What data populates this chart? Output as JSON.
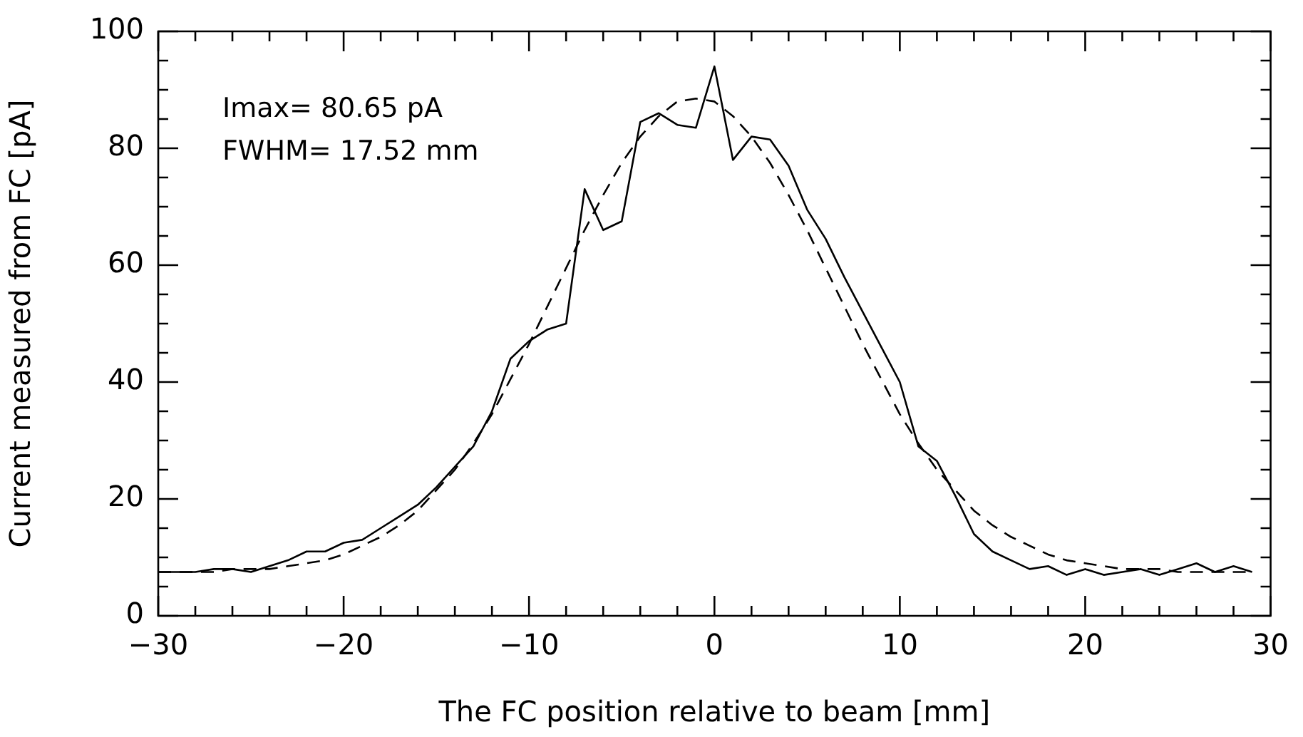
{
  "chart_data": {
    "type": "line",
    "xlabel": "The FC position relative to beam [mm]",
    "ylabel": "Current measured from FC [pA]",
    "annotations": [
      "Imax= 80.65 pA",
      "FWHM= 17.52 mm"
    ],
    "x": [
      -30,
      -29,
      -28,
      -27,
      -26,
      -25,
      -24,
      -23,
      -22,
      -21,
      -20,
      -19,
      -18,
      -17,
      -16,
      -15,
      -14,
      -13,
      -12,
      -11,
      -10,
      -9,
      -8,
      -7,
      -6,
      -5,
      -4,
      -3,
      -2,
      -1,
      0,
      1,
      2,
      3,
      4,
      5,
      6,
      7,
      8,
      9,
      10,
      11,
      12,
      13,
      14,
      15,
      16,
      17,
      18,
      19,
      20,
      21,
      22,
      23,
      24,
      25,
      26,
      27,
      28,
      29
    ],
    "series": [
      {
        "color": "#000000",
        "line_style": "solid",
        "values": [
          7.5,
          7.5,
          7.5,
          8,
          8,
          7.5,
          8.5,
          9.5,
          11,
          11,
          12.5,
          13,
          15,
          17,
          19,
          22,
          25.5,
          29,
          35,
          44,
          47,
          49,
          50,
          73,
          66,
          67.5,
          84.5,
          86,
          84,
          83.5,
          94,
          78,
          82,
          81.5,
          77,
          69.5,
          64.5,
          58,
          52,
          46,
          40,
          29,
          26.5,
          20.5,
          14,
          11,
          9.5,
          8,
          8.5,
          7,
          8,
          7,
          7.5,
          8,
          7,
          8,
          9,
          7.5,
          8.5,
          7.5
        ]
      },
      {
        "color": "#000000",
        "line_style": "dashed",
        "values": [
          7.5,
          7.5,
          7.5,
          7.5,
          8,
          8,
          8,
          8.5,
          9,
          9.5,
          10.5,
          12,
          13.5,
          15.5,
          18,
          21.5,
          25,
          29.5,
          34.5,
          40.5,
          46.5,
          53,
          59.5,
          66,
          72,
          77.5,
          82,
          85.5,
          88,
          88.5,
          88,
          85.5,
          82,
          77.5,
          72,
          66,
          59.5,
          53,
          46.5,
          40.5,
          34.5,
          29.5,
          25,
          21.5,
          18,
          15.5,
          13.5,
          12,
          10.5,
          9.5,
          9,
          8.5,
          8,
          8,
          8,
          7.5,
          7.5,
          7.5,
          7.5,
          7.5
        ]
      }
    ],
    "xlim": [
      -30,
      30
    ],
    "xticks": [
      -30,
      {
        "value": -28,
        "label": null
      },
      {
        "value": -26,
        "label": null
      },
      {
        "value": -24,
        "label": null
      },
      {
        "value": -22,
        "label": null
      },
      -20,
      {
        "value": -18,
        "label": null
      },
      {
        "value": -16,
        "label": null
      },
      {
        "value": -14,
        "label": null
      },
      {
        "value": -12,
        "label": null
      },
      -10,
      {
        "value": -8,
        "label": null
      },
      {
        "value": -6,
        "label": null
      },
      {
        "value": -4,
        "label": null
      },
      {
        "value": -2,
        "label": null
      },
      0,
      {
        "value": 2,
        "label": null
      },
      {
        "value": 4,
        "label": null
      },
      {
        "value": 6,
        "label": null
      },
      {
        "value": 8,
        "label": null
      },
      10,
      {
        "value": 12,
        "label": null
      },
      {
        "value": 14,
        "label": null
      },
      {
        "value": 16,
        "label": null
      },
      {
        "value": 18,
        "label": null
      },
      20,
      {
        "value": 22,
        "label": null
      },
      {
        "value": 24,
        "label": null
      },
      {
        "value": 26,
        "label": null
      },
      {
        "value": 28,
        "label": null
      },
      30
    ],
    "ylim": [
      0,
      100
    ],
    "yticks": [
      0,
      {
        "value": 5,
        "label": null
      },
      {
        "value": 10,
        "label": null
      },
      {
        "value": 15,
        "label": null
      },
      20,
      {
        "value": 25,
        "label": null
      },
      {
        "value": 30,
        "label": null
      },
      {
        "value": 35,
        "label": null
      },
      40,
      {
        "value": 45,
        "label": null
      },
      {
        "value": 50,
        "label": null
      },
      {
        "value": 55,
        "label": null
      },
      60,
      {
        "value": 65,
        "label": null
      },
      {
        "value": 70,
        "label": null
      },
      {
        "value": 75,
        "label": null
      },
      80,
      {
        "value": 85,
        "label": null
      },
      {
        "value": 90,
        "label": null
      },
      {
        "value": 95,
        "label": null
      },
      100
    ],
    "grid": false,
    "legend": false,
    "marker": "none"
  }
}
